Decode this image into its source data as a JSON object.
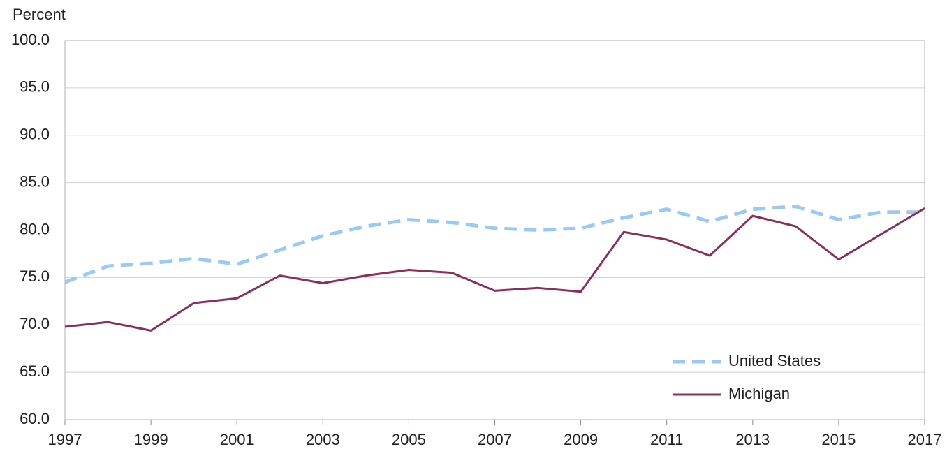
{
  "chart_data": {
    "type": "line",
    "y_axis_label": "Percent",
    "x": [
      1997,
      1998,
      1999,
      2000,
      2001,
      2002,
      2003,
      2004,
      2005,
      2006,
      2007,
      2008,
      2009,
      2010,
      2011,
      2012,
      2013,
      2014,
      2015,
      2016,
      2017
    ],
    "series": [
      {
        "name": "United States",
        "color": "#99c9f5",
        "dashed": true,
        "values": [
          74.5,
          76.2,
          76.5,
          77.0,
          76.4,
          77.9,
          79.4,
          80.4,
          81.1,
          80.8,
          80.2,
          80.0,
          80.2,
          81.3,
          82.2,
          80.9,
          82.2,
          82.5,
          81.1,
          81.9,
          81.9
        ]
      },
      {
        "name": "Michigan",
        "color": "#8b2f5a",
        "dashed": false,
        "values": [
          69.8,
          70.3,
          69.4,
          72.3,
          72.8,
          75.2,
          74.4,
          75.2,
          75.8,
          75.5,
          73.6,
          73.9,
          73.5,
          79.8,
          79.0,
          77.3,
          81.5,
          80.4,
          76.9,
          79.6,
          82.3
        ]
      }
    ],
    "xlim": [
      1997,
      2017
    ],
    "xticks": [
      1997,
      1999,
      2001,
      2003,
      2005,
      2007,
      2009,
      2011,
      2013,
      2015,
      2017
    ],
    "ylim": [
      60,
      100
    ],
    "yticks": [
      {
        "value": 60,
        "label": "60.0"
      },
      {
        "value": 65,
        "label": "65.0"
      },
      {
        "value": 70,
        "label": "70.0"
      },
      {
        "value": 75,
        "label": "75.0"
      },
      {
        "value": 80,
        "label": "80.0"
      },
      {
        "value": 85,
        "label": "85.0"
      },
      {
        "value": 90,
        "label": "90.0"
      },
      {
        "value": 95,
        "label": "95.0"
      },
      {
        "value": 100,
        "label": "100.0"
      }
    ],
    "grid": true,
    "legend_position": "lower-right"
  }
}
